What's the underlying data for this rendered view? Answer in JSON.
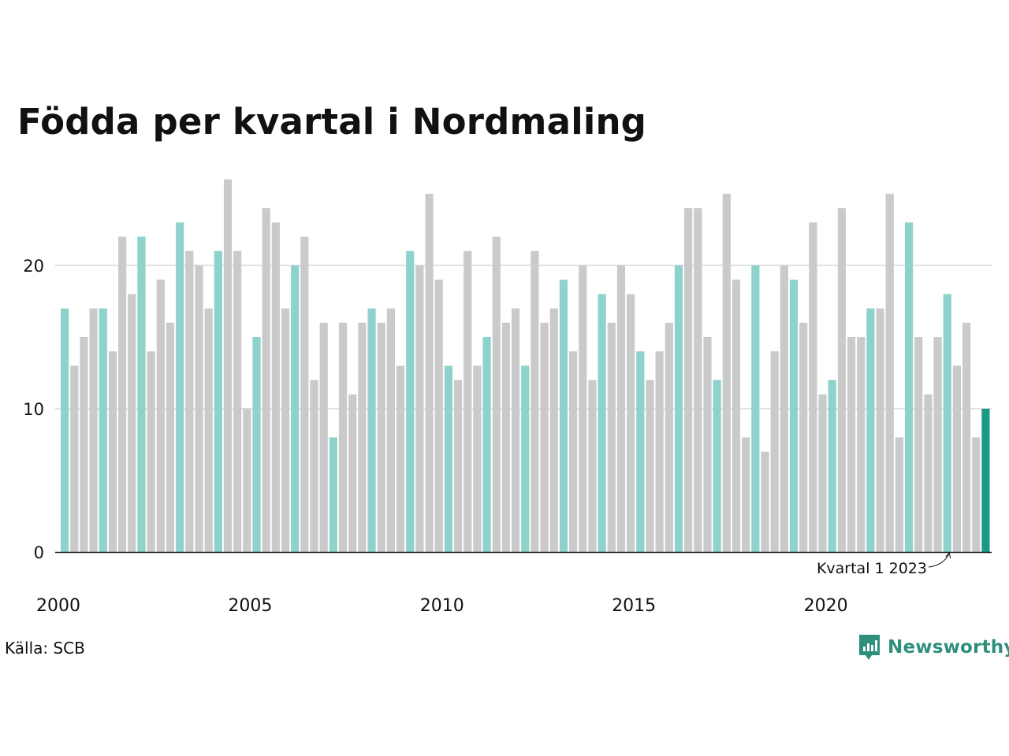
{
  "title": "Födda per kvartal i Nordmaling",
  "source": "Källa: SCB",
  "brand": "Newsworthy",
  "annotation": "Kvartal 1 2023",
  "colors": {
    "q1": "#8dd3cc",
    "other": "#cacaca",
    "highlight": "#1b9987",
    "grid": "#e2e2e2",
    "axis": "#222222",
    "brand": "#2f8f7d"
  },
  "chart_data": {
    "type": "bar",
    "title": "Födda per kvartal i Nordmaling",
    "xlabel": "",
    "ylabel": "",
    "ylim": [
      0,
      26
    ],
    "yticks": [
      0,
      10,
      20
    ],
    "xtick_labels": [
      "2000",
      "2005",
      "2010",
      "2015",
      "2020"
    ],
    "grid": true,
    "first_period": "2000 Q1",
    "highlight_label": "Kvartal 1 2023",
    "values": [
      17,
      13,
      15,
      17,
      17,
      14,
      22,
      18,
      22,
      14,
      19,
      16,
      23,
      21,
      20,
      17,
      21,
      26,
      21,
      10,
      15,
      24,
      23,
      17,
      20,
      22,
      12,
      16,
      8,
      16,
      11,
      16,
      17,
      16,
      17,
      13,
      21,
      20,
      25,
      19,
      13,
      12,
      21,
      13,
      15,
      22,
      16,
      17,
      13,
      21,
      16,
      17,
      19,
      14,
      20,
      12,
      18,
      16,
      20,
      18,
      14,
      12,
      14,
      16,
      20,
      24,
      24,
      15,
      12,
      25,
      19,
      8,
      20,
      7,
      14,
      20,
      19,
      16,
      23,
      11,
      12,
      24,
      15,
      15,
      17,
      17,
      25,
      8,
      23,
      15,
      11,
      15,
      18,
      13,
      16,
      8,
      10
    ]
  }
}
